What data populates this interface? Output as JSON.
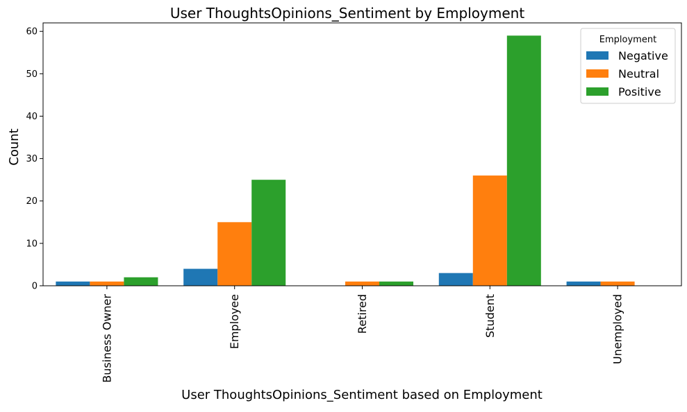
{
  "chart_data": {
    "type": "bar",
    "title": "User ThoughtsOpinions_Sentiment by Employment",
    "xlabel": "User ThoughtsOpinions_Sentiment based on Employment",
    "ylabel": "Count",
    "categories": [
      "Business Owner",
      "Employee",
      "Retired",
      "Student",
      "Unemployed"
    ],
    "series": [
      {
        "name": "Negative",
        "color": "#1f77b4",
        "values": [
          1,
          4,
          0,
          3,
          1
        ]
      },
      {
        "name": "Neutral",
        "color": "#ff7f0e",
        "values": [
          1,
          15,
          1,
          26,
          1
        ]
      },
      {
        "name": "Positive",
        "color": "#2ca02c",
        "values": [
          2,
          25,
          1,
          59,
          0
        ]
      }
    ],
    "ylim": [
      0,
      62
    ],
    "yticks": [
      0,
      10,
      20,
      30,
      40,
      50,
      60
    ],
    "legend": {
      "title": "Employment",
      "placement": "top-right"
    },
    "grid": false
  }
}
